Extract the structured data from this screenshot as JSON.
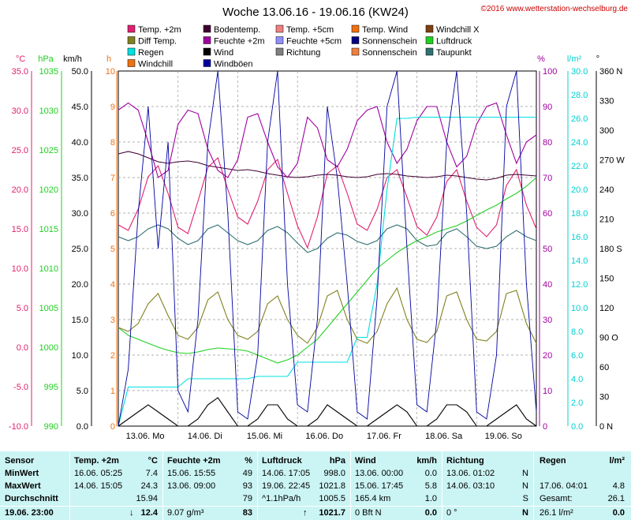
{
  "header": {
    "title": "Woche 13.06.16 - 19.06.16 (KW24)",
    "copyright": "©2016 www.wetterstation-wechselburg.de"
  },
  "legend": [
    {
      "label": "Temp. +2m",
      "color": "#e0206e"
    },
    {
      "label": "Bodentemp.",
      "color": "#400030"
    },
    {
      "label": "Temp. +5cm",
      "color": "#f08080"
    },
    {
      "label": "Temp. Wind",
      "color": "#f07010"
    },
    {
      "label": "Windchill X",
      "color": "#804010"
    },
    {
      "label": "Diff Temp.",
      "color": "#808020"
    },
    {
      "label": "Feuchte +2m",
      "color": "#a000a0"
    },
    {
      "label": "Feuchte +5cm",
      "color": "#9090ff"
    },
    {
      "label": "Sonnenschein",
      "color": "#000080"
    },
    {
      "label": "Luftdruck",
      "color": "#20d020"
    },
    {
      "label": "Regen",
      "color": "#00e0e0"
    },
    {
      "label": "Wind",
      "color": "#000000"
    },
    {
      "label": "Richtung",
      "color": "#808080"
    },
    {
      "label": "Sonnenschein",
      "color": "#f08040"
    },
    {
      "label": "Taupunkt",
      "color": "#307070"
    },
    {
      "label": "Windchill",
      "color": "#f07010"
    },
    {
      "label": "Windböen",
      "color": "#0000a0"
    }
  ],
  "chart_data": {
    "type": "line",
    "title": "Woche 13.06.16 - 19.06.16 (KW24)",
    "x_labels": [
      "13.06. Mo",
      "14.06. Di",
      "15.06. Mi",
      "16.06. Do",
      "17.06. Fr",
      "18.06. Sa",
      "19.06. So"
    ],
    "axes": {
      "temp": {
        "unit": "°C",
        "color": "#e0206e",
        "min": -10,
        "max": 35,
        "ticks": [
          "35.0",
          "30.0",
          "25.0",
          "20.0",
          "15.0",
          "10.0",
          "5.0",
          "0.0",
          "-5.0",
          "-10.0"
        ]
      },
      "pressure": {
        "unit": "hPa",
        "color": "#20d020",
        "min": 990,
        "max": 1035,
        "ticks": [
          "1035",
          "1030",
          "1025",
          "1020",
          "1015",
          "1010",
          "1005",
          "1000",
          "995",
          "990"
        ]
      },
      "wind": {
        "unit": "km/h",
        "color": "#000000",
        "min": 0,
        "max": 50,
        "ticks": [
          "50.0",
          "45.0",
          "40.0",
          "35.0",
          "30.0",
          "25.0",
          "20.0",
          "15.0",
          "10.0",
          "5.0",
          "0.0"
        ]
      },
      "sunshine": {
        "unit": "h",
        "color": "#f07010",
        "min": 0,
        "max": 10,
        "ticks": [
          "10",
          "9",
          "8",
          "7",
          "6",
          "5",
          "4",
          "3",
          "2",
          "1",
          "0"
        ]
      },
      "humidity": {
        "unit": "%",
        "color": "#a000a0",
        "min": 0,
        "max": 100,
        "ticks": [
          "100",
          "90",
          "80",
          "70",
          "60",
          "50",
          "40",
          "30",
          "20",
          "10",
          "0"
        ]
      },
      "rain": {
        "unit": "l/m²",
        "color": "#00d0d0",
        "min": 0,
        "max": 30,
        "ticks": [
          "30.0",
          "28.0",
          "26.0",
          "24.0",
          "22.0",
          "20.0",
          "18.0",
          "16.0",
          "14.0",
          "12.0",
          "10.0",
          "8.0",
          "6.0",
          "4.0",
          "2.0",
          "0.0"
        ]
      },
      "direction": {
        "unit": "°",
        "color": "#000000",
        "min": 0,
        "max": 360,
        "ticks": [
          "360 N",
          "330",
          "300",
          "270 W",
          "240",
          "210",
          "180 S",
          "150",
          "120",
          "90 O",
          "60",
          "30",
          "0 N"
        ]
      }
    },
    "series": [
      {
        "name": "Temp. +2m",
        "axis": "temp",
        "values": [
          15.5,
          14.8,
          17.5,
          21.6,
          23.0,
          19.5,
          15.2,
          14.4,
          18.5,
          22.8,
          24.0,
          20.0,
          16.5,
          15.6,
          18.5,
          22.5,
          23.8,
          19.5,
          15.4,
          12.6,
          16.5,
          22.0,
          23.0,
          19.5,
          15.6,
          14.8,
          17.5,
          21.5,
          22.5,
          19.0,
          15.3,
          14.2,
          16.5,
          21.0,
          22.5,
          18.5,
          15.2,
          14.0,
          15.5,
          20.5,
          22.5,
          18.0,
          15.0
        ]
      },
      {
        "name": "Bodentemp.",
        "axis": "temp",
        "values": [
          24.5,
          24.8,
          24.5,
          24.0,
          23.5,
          23.3,
          23.5,
          23.6,
          23.4,
          23.0,
          22.8,
          22.6,
          22.4,
          22.5,
          22.3,
          22.0,
          21.8,
          21.6,
          21.5,
          21.6,
          21.8,
          21.9,
          21.8,
          21.6,
          21.5,
          21.6,
          21.9,
          22.0,
          21.9,
          21.7,
          21.6,
          21.5,
          21.6,
          21.8,
          21.7,
          21.5,
          21.3,
          21.2,
          21.4,
          21.8,
          21.9,
          21.8,
          21.7
        ]
      },
      {
        "name": "Feuchte +2m",
        "axis": "humidity",
        "values": [
          89,
          91,
          89,
          80,
          70,
          72,
          85,
          89,
          88,
          78,
          72,
          70,
          75,
          87,
          88,
          80,
          73,
          70,
          74,
          87,
          84,
          75,
          73,
          78,
          86,
          89,
          90,
          80,
          74,
          78,
          86,
          90,
          90,
          80,
          73,
          76,
          85,
          90,
          91,
          82,
          74,
          80,
          82
        ]
      },
      {
        "name": "Luftdruck",
        "axis": "pressure",
        "values": [
          1002.5,
          1001.5,
          1001.0,
          1000.5,
          1000.0,
          999.6,
          999.3,
          999.2,
          999.4,
          999.7,
          999.9,
          999.8,
          999.7,
          999.5,
          999.0,
          998.5,
          998.0,
          998.4,
          999.0,
          1000.0,
          1001.0,
          1002.5,
          1004.0,
          1005.5,
          1007.0,
          1008.5,
          1010.0,
          1011.0,
          1012.0,
          1012.8,
          1013.5,
          1014.0,
          1014.6,
          1015.0,
          1015.4,
          1016.0,
          1016.7,
          1017.4,
          1018.0,
          1018.8,
          1019.5,
          1020.4,
          1021.5
        ]
      },
      {
        "name": "Regen",
        "axis": "rain",
        "values": [
          0,
          3.3,
          3.3,
          3.3,
          3.3,
          3.3,
          3.3,
          4.0,
          4.0,
          4.0,
          4.0,
          4.0,
          4.0,
          4.0,
          4.2,
          4.2,
          4.2,
          4.2,
          5.4,
          5.4,
          5.4,
          5.4,
          5.4,
          5.4,
          7.5,
          7.5,
          12.0,
          20.0,
          26.0,
          26.0,
          26.1,
          26.1,
          26.1,
          26.1,
          26.1,
          26.1,
          26.1,
          26.1,
          26.1,
          26.1,
          26.1,
          26.1,
          26.1
        ]
      },
      {
        "name": "Taupunkt",
        "axis": "temp",
        "values": [
          14.0,
          13.5,
          14.0,
          15.0,
          15.5,
          15.0,
          13.8,
          13.0,
          13.5,
          15.0,
          15.5,
          14.5,
          13.5,
          13.0,
          13.5,
          14.8,
          15.3,
          14.5,
          13.2,
          12.0,
          12.5,
          13.8,
          14.5,
          14.2,
          13.4,
          13.0,
          13.5,
          15.0,
          15.5,
          15.0,
          13.5,
          12.8,
          13.0,
          14.5,
          15.0,
          14.0,
          12.8,
          12.5,
          12.8,
          14.0,
          14.8,
          14.0,
          13.5
        ]
      },
      {
        "name": "Diff Temp.",
        "axis": "temp",
        "values": [
          2.5,
          2.0,
          3.0,
          5.5,
          6.8,
          4.0,
          1.5,
          1.0,
          2.5,
          6.0,
          7.0,
          3.5,
          1.5,
          1.0,
          2.0,
          5.5,
          6.5,
          3.5,
          1.5,
          0.5,
          2.5,
          6.5,
          7.2,
          3.5,
          1.0,
          0.5,
          2.0,
          5.5,
          7.5,
          3.5,
          1.0,
          0.6,
          2.0,
          6.5,
          7.0,
          3.5,
          1.0,
          0.8,
          2.0,
          6.8,
          7.2,
          3.0,
          0.5
        ]
      },
      {
        "name": "Windböen",
        "axis": "wind",
        "values": [
          0,
          8,
          30,
          45,
          25,
          40,
          5,
          2,
          15,
          40,
          50,
          30,
          2,
          1,
          10,
          40,
          50,
          20,
          3,
          2,
          15,
          45,
          35,
          20,
          2,
          1,
          18,
          45,
          50,
          25,
          3,
          2,
          15,
          40,
          50,
          30,
          2,
          1,
          10,
          45,
          50,
          20,
          2
        ]
      },
      {
        "name": "Wind",
        "axis": "wind",
        "values": [
          0,
          1,
          2,
          3,
          2,
          1,
          0,
          0,
          1,
          3,
          4,
          2,
          0,
          0,
          1,
          3,
          3,
          1,
          0,
          0,
          1,
          3,
          2,
          1,
          0,
          0,
          1,
          2,
          3,
          2,
          0,
          0,
          1,
          3,
          3,
          2,
          0,
          0,
          1,
          2,
          3,
          1,
          0
        ]
      }
    ]
  },
  "summary": {
    "headers": {
      "sensor": "Sensor",
      "temp": "Temp. +2m",
      "temp_unit": "°C",
      "hum": "Feuchte +2m",
      "hum_unit": "%",
      "press": "Luftdruck",
      "press_unit": "hPa",
      "wind": "Wind",
      "wind_unit": "km/h",
      "dir": "Richtung",
      "rain": "Regen",
      "rain_unit": "l/m²"
    },
    "rows": [
      {
        "label": "MinWert",
        "temp_time": "16.06.  05:25",
        "temp_val": "7.4",
        "hum_time": "15.06.  15:55",
        "hum_val": "49",
        "press_time": "14.06.  17:05",
        "press_val": "998.0",
        "wind_time": "13.06.  00:00",
        "wind_val": "0.0",
        "dir_time": "13.06.  01:02",
        "dir_val": "N",
        "rain_time": "",
        "rain_val": ""
      },
      {
        "label": "MaxWert",
        "temp_time": "14.06.  15:05",
        "temp_val": "24.3",
        "hum_time": "13.06.  09:00",
        "hum_val": "93",
        "press_time": "19.06.  22:45",
        "press_val": "1021.8",
        "wind_time": "15.06.  17:45",
        "wind_val": "5.8",
        "dir_time": "14.06.  03:10",
        "dir_val": "N",
        "rain_time": "17.06.  04:01",
        "rain_val": "4.8"
      },
      {
        "label": "Durchschnitt",
        "temp_time": "",
        "temp_val": "15.94",
        "hum_time": "",
        "hum_val": "79",
        "press_time": "^1.1hPa/h",
        "press_val": "1005.5",
        "wind_time": "165.4 km",
        "wind_val": "1.0",
        "dir_time": "",
        "dir_val": "S",
        "rain_time": "Gesamt:",
        "rain_val": "26.1"
      }
    ],
    "current": {
      "label": "19.06. 23:00",
      "temp": "12.4",
      "hum_extra": "9.07 g/m³",
      "hum": "83",
      "press": "1021.7",
      "wind_extra": "0 Bft N",
      "wind": "0.0",
      "dir": "0 °",
      "dir_val": "N",
      "rain_extra": "26.1 l/m²",
      "rain": "0.0"
    }
  }
}
